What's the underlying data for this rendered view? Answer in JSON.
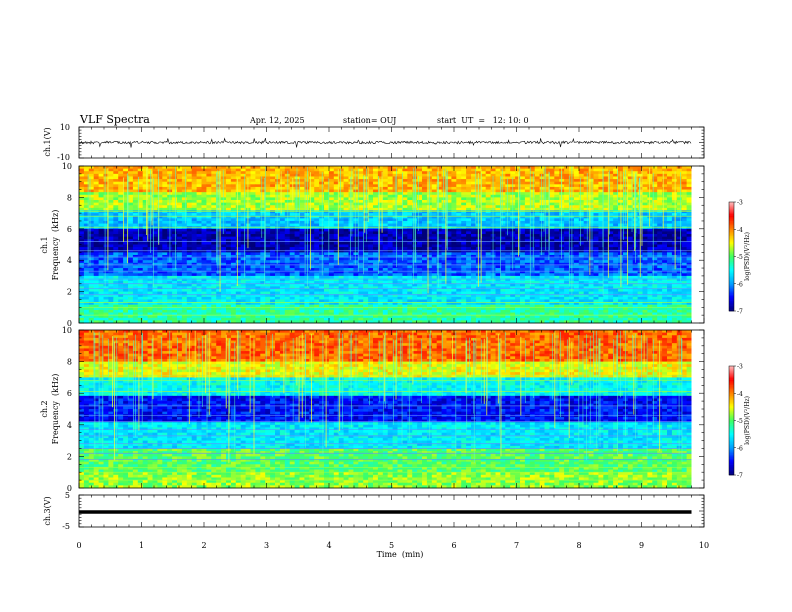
{
  "header": {
    "title": "VLF Spectra",
    "date": "Apr. 12, 2025",
    "station": "station= OUJ",
    "start": "start  UT  =   12: 10: 0"
  },
  "chart_data": [
    {
      "type": "line",
      "name": "ch1-waveform",
      "ylabel": "ch.1(V)",
      "ylim": [
        -10,
        10
      ],
      "yticks": [
        "10",
        "-10"
      ],
      "xlim": [
        0,
        10
      ],
      "baseline": 0
    },
    {
      "type": "heatmap",
      "name": "ch1-spectrogram",
      "ylabel": [
        "ch.1",
        "Frequency  (kHz)"
      ],
      "ylim": [
        0,
        10
      ],
      "yticks": [
        "0",
        "2",
        "4",
        "6",
        "8",
        "10"
      ],
      "xlim": [
        0,
        10
      ],
      "data_end_min": 9.8,
      "colorbar": {
        "label": "log(PSD)(V²/Hz)",
        "range": [
          -7,
          -3
        ],
        "ticks": [
          "-3",
          "-4",
          "-5",
          "-6",
          "-7"
        ]
      }
    },
    {
      "type": "heatmap",
      "name": "ch2-spectrogram",
      "ylabel": [
        "ch.2",
        "Frequency  (kHz)"
      ],
      "ylim": [
        0,
        10
      ],
      "yticks": [
        "0",
        "2",
        "4",
        "6",
        "8",
        "10"
      ],
      "xlim": [
        0,
        10
      ],
      "data_end_min": 9.8,
      "colorbar": {
        "label": "log(PSD)(V²/Hz)",
        "range": [
          -7,
          -3
        ],
        "ticks": [
          "-3",
          "-4",
          "-5",
          "-6",
          "-7"
        ]
      }
    },
    {
      "type": "line",
      "name": "ch3-waveform",
      "ylabel": "ch.3(V)",
      "ylim": [
        -5,
        5
      ],
      "yticks": [
        "5",
        "-5"
      ],
      "xlim": [
        0,
        10
      ],
      "baseline": -0.3
    }
  ],
  "xaxis": {
    "label": "Time  (min)",
    "ticks": [
      "0",
      "1",
      "2",
      "3",
      "4",
      "5",
      "6",
      "7",
      "8",
      "9",
      "10"
    ]
  },
  "colors": {
    "colormap": [
      "#00007a",
      "#0000ff",
      "#00a0ff",
      "#00ffff",
      "#40ff60",
      "#ffff00",
      "#ff8000",
      "#ff0000",
      "#ffc0c0"
    ]
  }
}
